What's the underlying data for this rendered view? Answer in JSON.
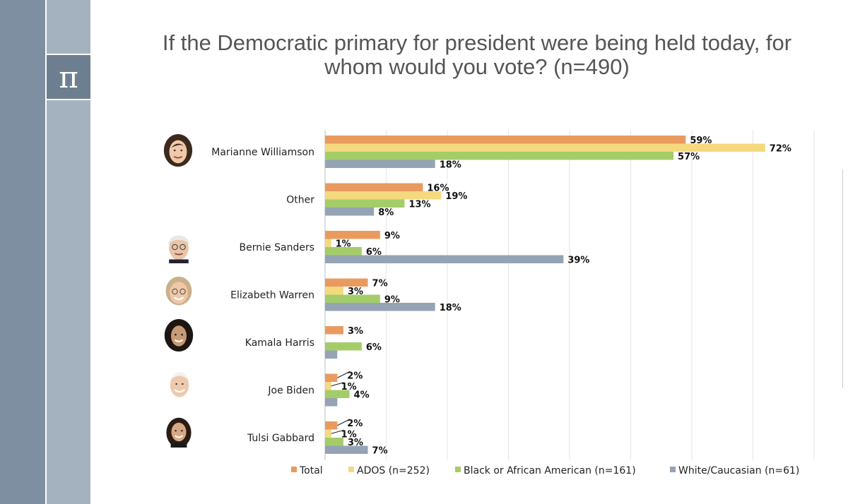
{
  "sidebar": {
    "logo_symbol": "π"
  },
  "chart_data": {
    "type": "bar",
    "orientation": "horizontal",
    "title_lines": [
      "If the Democratic primary for president were being held today, for",
      "whom would you vote? (n=490)"
    ],
    "categories": [
      "Marianne Williamson",
      "Other",
      "Bernie Sanders",
      "Elizabeth Warren",
      "Kamala Harris",
      "Joe Biden",
      "Tulsi Gabbard"
    ],
    "series": [
      {
        "name": "Total",
        "color": "#e99b5f",
        "values": [
          59,
          16,
          9,
          7,
          3,
          2,
          2
        ],
        "labels": [
          "59%",
          "16%",
          "9%",
          "7%",
          "3%",
          "2%",
          "2%"
        ]
      },
      {
        "name": "ADOS (n=252)",
        "color": "#f5d97f",
        "values": [
          72,
          19,
          1,
          3,
          0,
          1,
          1
        ],
        "labels": [
          "72%",
          "19%",
          "1%",
          "3%",
          "",
          "1%",
          "1%"
        ]
      },
      {
        "name": "Black or African American (n=161)",
        "color": "#a4cd6a",
        "values": [
          57,
          13,
          6,
          9,
          6,
          4,
          3
        ],
        "labels": [
          "57%",
          "13%",
          "6%",
          "9%",
          "6%",
          "4%",
          "3%"
        ]
      },
      {
        "name": "White/Caucasian (n=61)",
        "color": "#94a4b4",
        "values": [
          18,
          8,
          39,
          18,
          2,
          2,
          7
        ],
        "labels": [
          "18%",
          "8%",
          "39%",
          "18%",
          "",
          "",
          "7%"
        ]
      }
    ],
    "xlim": [
      0,
      80
    ],
    "grid": true,
    "legend_position": "bottom"
  }
}
